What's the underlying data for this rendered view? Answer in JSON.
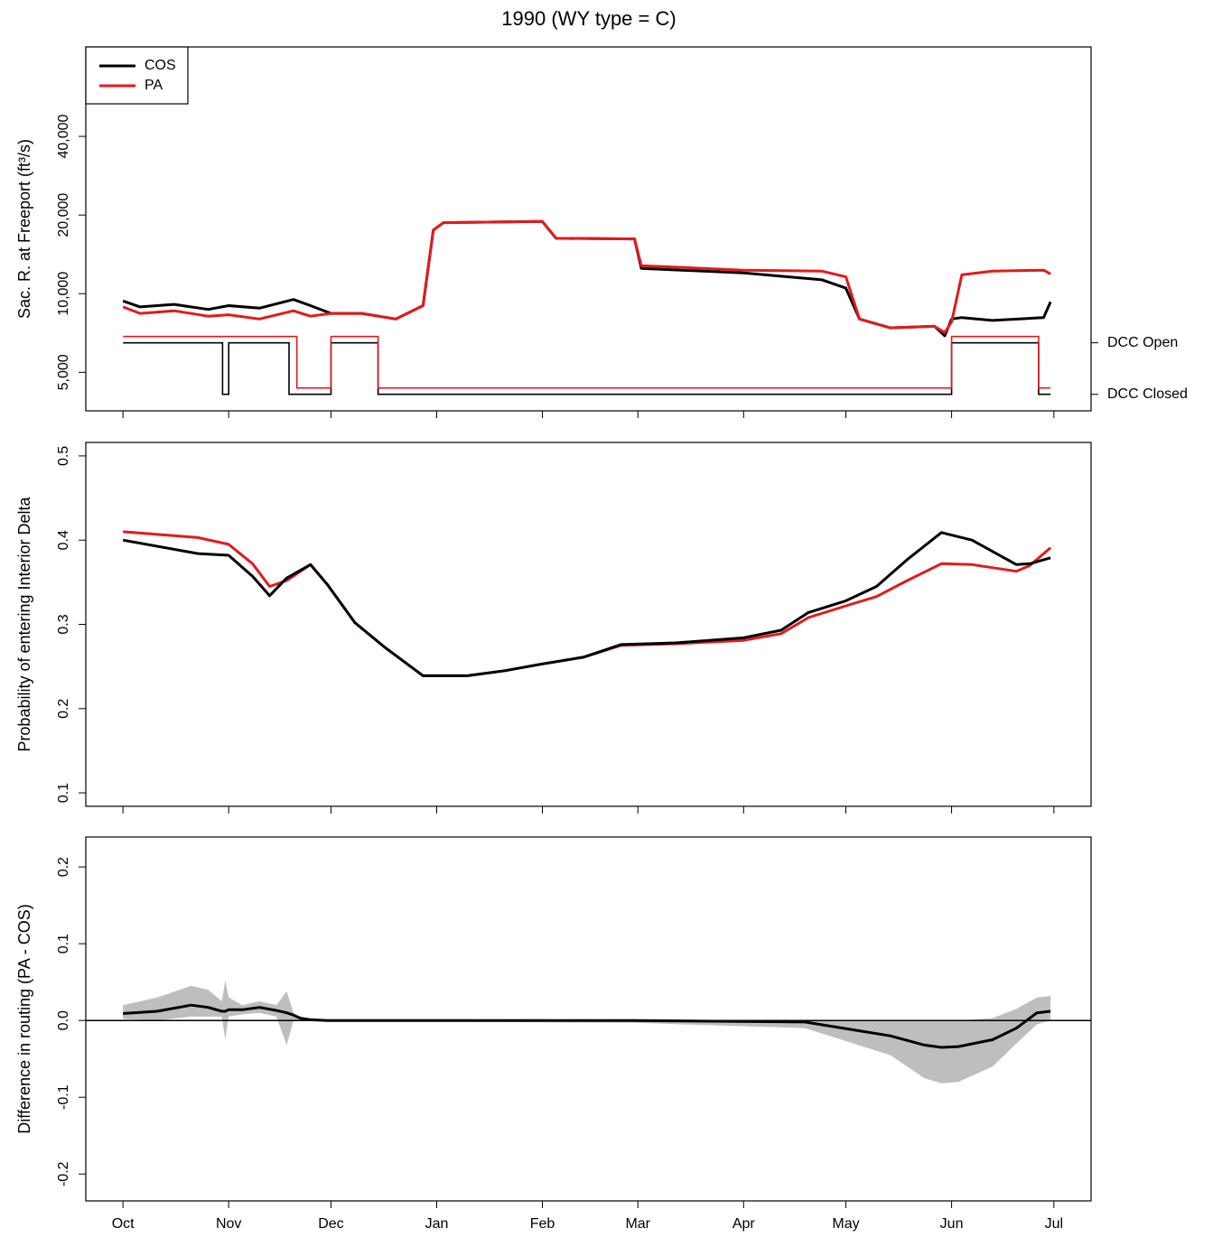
{
  "chart_data": [
    {
      "type": "line",
      "title": "1990 (WY type = C)",
      "ylabel": "Sac. R. at Freeport (ft³/s)",
      "ylog": true,
      "xlim": [
        -10.9,
        283.9
      ],
      "xticks": [
        0,
        31,
        61,
        92,
        123,
        151,
        182,
        212,
        243,
        273
      ],
      "ylim": [
        3560,
        88000
      ],
      "yticks": [
        {
          "value": 5000,
          "label": "5,000"
        },
        {
          "value": 10000,
          "label": "10,000"
        },
        {
          "value": 20000,
          "label": "20,000"
        },
        {
          "value": 40000,
          "label": "40,000"
        }
      ],
      "y2lim": [
        -0.32,
        6.74
      ],
      "y2ticks": [
        {
          "value": 1,
          "label": "DCC Open"
        },
        {
          "value": 0,
          "label": "DCC Closed"
        }
      ],
      "legend": "top-left",
      "x": [
        0,
        5,
        15,
        25,
        31,
        40,
        50,
        55,
        61,
        70,
        80,
        88,
        91,
        94,
        123,
        127,
        150,
        152,
        182,
        205,
        212,
        216,
        225,
        238,
        241,
        243,
        246,
        255,
        270,
        272
      ],
      "series": [
        {
          "name": "COS",
          "color": "#000000",
          "values": [
            9380,
            8900,
            9100,
            8700,
            9000,
            8800,
            9500,
            9000,
            8400,
            8400,
            8000,
            9000,
            17500,
            18700,
            18900,
            16300,
            16200,
            12500,
            12000,
            11300,
            10500,
            8000,
            7400,
            7500,
            6900,
            8000,
            8100,
            7900,
            8100,
            9300
          ]
        },
        {
          "name": "PA",
          "color": "#e31a1c",
          "values": [
            8900,
            8400,
            8600,
            8200,
            8300,
            8000,
            8600,
            8200,
            8400,
            8400,
            8000,
            9000,
            17500,
            18700,
            18900,
            16300,
            16200,
            12800,
            12300,
            12200,
            11600,
            8000,
            7400,
            7500,
            7100,
            7800,
            11800,
            12200,
            12300,
            11900
          ]
        }
      ],
      "steps": [
        {
          "color": "#000000",
          "axis": "y2",
          "x": [
            0,
            29.2,
            31,
            48.7,
            61,
            74.8,
            243,
            268.5,
            272
          ],
          "values": [
            1,
            0,
            1,
            0,
            1,
            0,
            1,
            0,
            0
          ]
        },
        {
          "color": "#e31a1c",
          "axis": "y2",
          "x": [
            0,
            51,
            61,
            74.8,
            243,
            268.5,
            272
          ],
          "values": [
            1,
            0,
            1,
            0,
            1,
            0,
            0
          ]
        }
      ]
    },
    {
      "type": "line",
      "ylabel": "Probability of entering Interior Delta",
      "xlim": [
        -10.9,
        283.9
      ],
      "xticks": [
        0,
        31,
        61,
        92,
        123,
        151,
        182,
        212,
        243,
        273
      ],
      "ylim": [
        0.084,
        0.516
      ],
      "yticks": [
        0.1,
        0.2,
        0.3,
        0.4,
        0.5
      ],
      "x": [
        0,
        22,
        31,
        38,
        43,
        48,
        55,
        60,
        68,
        77,
        88,
        101,
        112,
        123,
        135,
        146,
        162,
        182,
        193,
        201,
        212,
        221,
        230,
        240,
        249,
        262,
        266,
        272
      ],
      "series": [
        {
          "color": "#e31a1c",
          "values": [
            0.41,
            0.403,
            0.395,
            0.372,
            0.345,
            0.352,
            0.371,
            0.347,
            0.302,
            0.272,
            0.239,
            0.239,
            0.245,
            0.253,
            0.261,
            0.275,
            0.277,
            0.281,
            0.289,
            0.308,
            0.322,
            0.333,
            0.352,
            0.372,
            0.371,
            0.363,
            0.37,
            0.391
          ]
        },
        {
          "color": "#000000",
          "values": [
            0.4,
            0.384,
            0.382,
            0.357,
            0.334,
            0.355,
            0.371,
            0.347,
            0.302,
            0.272,
            0.239,
            0.239,
            0.245,
            0.253,
            0.261,
            0.276,
            0.278,
            0.284,
            0.293,
            0.314,
            0.328,
            0.345,
            0.377,
            0.409,
            0.4,
            0.371,
            0.372,
            0.379
          ]
        }
      ]
    },
    {
      "type": "band",
      "ylabel": "Difference in routing (PA - COS)",
      "xlim": [
        -10.9,
        283.9
      ],
      "xticks": [
        {
          "value": 0,
          "label": "Oct"
        },
        {
          "value": 31,
          "label": "Nov"
        },
        {
          "value": 61,
          "label": "Dec"
        },
        {
          "value": 92,
          "label": "Jan"
        },
        {
          "value": 123,
          "label": "Feb"
        },
        {
          "value": 151,
          "label": "Mar"
        },
        {
          "value": 182,
          "label": "Apr"
        },
        {
          "value": 212,
          "label": "May"
        },
        {
          "value": 243,
          "label": "Jun"
        },
        {
          "value": 273,
          "label": "Jul"
        }
      ],
      "ylim": [
        -0.235,
        0.239
      ],
      "yticks": [
        -0.2,
        -0.1,
        {
          "value": 0,
          "label": "0.0"
        },
        0.1,
        0.2
      ],
      "hline": 0,
      "color": "#000000",
      "band_color": "#bebebe",
      "x": [
        0,
        10,
        20,
        25,
        29,
        30,
        31,
        35,
        40,
        45,
        48,
        50,
        52,
        55,
        60,
        75,
        150,
        200,
        225,
        235,
        240,
        245,
        255,
        262,
        268,
        272
      ],
      "values": [
        0.009,
        0.012,
        0.02,
        0.017,
        0.012,
        0.012,
        0.014,
        0.014,
        0.017,
        0.013,
        0.01,
        0.007,
        0.003,
        0.001,
        0,
        0,
        0,
        -0.002,
        -0.02,
        -0.032,
        -0.035,
        -0.034,
        -0.025,
        -0.01,
        0.01,
        0.012
      ],
      "band_upper": [
        0.02,
        0.03,
        0.045,
        0.04,
        0.025,
        0.052,
        0.03,
        0.02,
        0.025,
        0.02,
        0.038,
        0.01,
        0.003,
        0.001,
        0,
        0.001,
        0.001,
        0,
        0,
        0,
        0,
        0,
        0.003,
        0.015,
        0.03,
        0.032
      ],
      "band_lower": [
        0.002,
        0,
        0.005,
        0.005,
        0.005,
        -0.025,
        0.005,
        0.008,
        0.01,
        0.005,
        -0.032,
        0,
        0,
        -0.001,
        -0.001,
        -0.001,
        -0.003,
        -0.01,
        -0.045,
        -0.075,
        -0.082,
        -0.08,
        -0.06,
        -0.03,
        -0.005,
        0
      ]
    }
  ]
}
